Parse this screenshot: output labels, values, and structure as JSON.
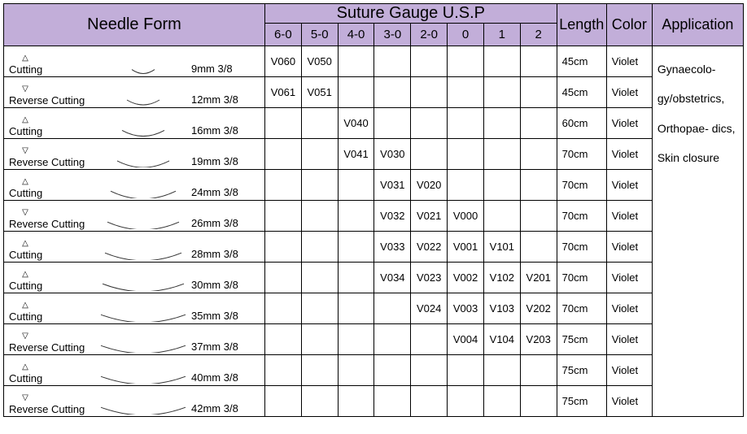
{
  "header": {
    "needle_form": "Needle Form",
    "gauge_title": "Suture Gauge U.S.P",
    "gauges": [
      "6-0",
      "5-0",
      "4-0",
      "3-0",
      "2-0",
      "0",
      "1",
      "2"
    ],
    "length": "Length",
    "color": "Color",
    "application": "Application"
  },
  "colors": {
    "header_bg": "#c2aed9",
    "border": "#000000",
    "text": "#000000",
    "needle_stroke": "#333333"
  },
  "needle": {
    "cutting_label": "Cutting",
    "reverse_label": "Reverse Cutting",
    "tri_up": "△",
    "tri_down": "▽"
  },
  "rows": [
    {
      "type": "cut",
      "dim": "9mm  3/8",
      "arc": 14,
      "codes": [
        "V060",
        "V050",
        "",
        "",
        "",
        "",
        "",
        ""
      ],
      "len": "45cm",
      "color": "Violet"
    },
    {
      "type": "rev",
      "dim": "12mm  3/8",
      "arc": 20,
      "codes": [
        "V061",
        "V051",
        "",
        "",
        "",
        "",
        "",
        ""
      ],
      "len": "45cm",
      "color": "Violet"
    },
    {
      "type": "cut",
      "dim": "16mm  3/8",
      "arc": 26,
      "codes": [
        "",
        "",
        "V040",
        "",
        "",
        "",
        "",
        ""
      ],
      "len": "60cm",
      "color": "Violet"
    },
    {
      "type": "rev",
      "dim": "19mm  3/8",
      "arc": 32,
      "codes": [
        "",
        "",
        "V041",
        "V030",
        "",
        "",
        "",
        ""
      ],
      "len": "70cm",
      "color": "Violet"
    },
    {
      "type": "cut",
      "dim": "24mm  3/8",
      "arc": 40,
      "codes": [
        "",
        "",
        "",
        "V031",
        "V020",
        "",
        "",
        ""
      ],
      "len": "70cm",
      "color": "Violet"
    },
    {
      "type": "rev",
      "dim": "26mm  3/8",
      "arc": 44,
      "codes": [
        "",
        "",
        "",
        "V032",
        "V021",
        "V000",
        "",
        ""
      ],
      "len": "70cm",
      "color": "Violet"
    },
    {
      "type": "cut",
      "dim": "28mm  3/8",
      "arc": 47,
      "codes": [
        "",
        "",
        "",
        "V033",
        "V022",
        "V001",
        "V101",
        ""
      ],
      "len": "70cm",
      "color": "Violet"
    },
    {
      "type": "cut",
      "dim": "30mm  3/8",
      "arc": 50,
      "codes": [
        "",
        "",
        "",
        "V034",
        "V023",
        "V002",
        "V102",
        "V201"
      ],
      "len": "70cm",
      "color": "Violet"
    },
    {
      "type": "cut",
      "dim": "35mm  3/8",
      "arc": 52,
      "codes": [
        "",
        "",
        "",
        "",
        "V024",
        "V003",
        "V103",
        "V202"
      ],
      "len": "70cm",
      "color": "Violet"
    },
    {
      "type": "rev",
      "dim": "37mm  3/8",
      "arc": 52,
      "codes": [
        "",
        "",
        "",
        "",
        "",
        "V004",
        "V104",
        "V203"
      ],
      "len": "75cm",
      "color": "Violet"
    },
    {
      "type": "cut",
      "dim": "40mm  3/8",
      "arc": 52,
      "codes": [
        "",
        "",
        "",
        "",
        "",
        "",
        "",
        ""
      ],
      "len": "75cm",
      "color": "Violet"
    },
    {
      "type": "rev",
      "dim": "42mm  3/8",
      "arc": 52,
      "codes": [
        "",
        "",
        "",
        "",
        "",
        "",
        "",
        ""
      ],
      "len": "75cm",
      "color": "Violet"
    }
  ],
  "application_text": "Gynaecolo- gy/obstetrics, Orthopae- dics, Skin closure"
}
